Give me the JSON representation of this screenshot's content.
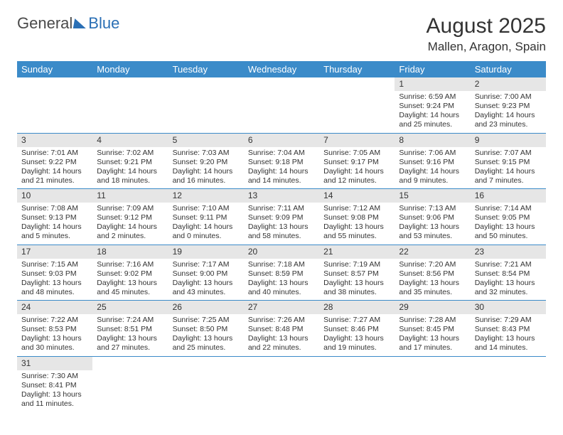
{
  "logo": {
    "text1": "General",
    "text2": "Blue"
  },
  "title": {
    "month": "August 2025",
    "location": "Mallen, Aragon, Spain"
  },
  "colors": {
    "header_bg": "#3b8bc9",
    "header_text": "#ffffff",
    "daynum_bg": "#e6e6e6",
    "border": "#3b8bc9",
    "logo_accent": "#2a6fb5"
  },
  "weekdays": [
    "Sunday",
    "Monday",
    "Tuesday",
    "Wednesday",
    "Thursday",
    "Friday",
    "Saturday"
  ],
  "weeks": [
    [
      null,
      null,
      null,
      null,
      null,
      {
        "n": "1",
        "sunrise": "Sunrise: 6:59 AM",
        "sunset": "Sunset: 9:24 PM",
        "daylight": "Daylight: 14 hours and 25 minutes."
      },
      {
        "n": "2",
        "sunrise": "Sunrise: 7:00 AM",
        "sunset": "Sunset: 9:23 PM",
        "daylight": "Daylight: 14 hours and 23 minutes."
      }
    ],
    [
      {
        "n": "3",
        "sunrise": "Sunrise: 7:01 AM",
        "sunset": "Sunset: 9:22 PM",
        "daylight": "Daylight: 14 hours and 21 minutes."
      },
      {
        "n": "4",
        "sunrise": "Sunrise: 7:02 AM",
        "sunset": "Sunset: 9:21 PM",
        "daylight": "Daylight: 14 hours and 18 minutes."
      },
      {
        "n": "5",
        "sunrise": "Sunrise: 7:03 AM",
        "sunset": "Sunset: 9:20 PM",
        "daylight": "Daylight: 14 hours and 16 minutes."
      },
      {
        "n": "6",
        "sunrise": "Sunrise: 7:04 AM",
        "sunset": "Sunset: 9:18 PM",
        "daylight": "Daylight: 14 hours and 14 minutes."
      },
      {
        "n": "7",
        "sunrise": "Sunrise: 7:05 AM",
        "sunset": "Sunset: 9:17 PM",
        "daylight": "Daylight: 14 hours and 12 minutes."
      },
      {
        "n": "8",
        "sunrise": "Sunrise: 7:06 AM",
        "sunset": "Sunset: 9:16 PM",
        "daylight": "Daylight: 14 hours and 9 minutes."
      },
      {
        "n": "9",
        "sunrise": "Sunrise: 7:07 AM",
        "sunset": "Sunset: 9:15 PM",
        "daylight": "Daylight: 14 hours and 7 minutes."
      }
    ],
    [
      {
        "n": "10",
        "sunrise": "Sunrise: 7:08 AM",
        "sunset": "Sunset: 9:13 PM",
        "daylight": "Daylight: 14 hours and 5 minutes."
      },
      {
        "n": "11",
        "sunrise": "Sunrise: 7:09 AM",
        "sunset": "Sunset: 9:12 PM",
        "daylight": "Daylight: 14 hours and 2 minutes."
      },
      {
        "n": "12",
        "sunrise": "Sunrise: 7:10 AM",
        "sunset": "Sunset: 9:11 PM",
        "daylight": "Daylight: 14 hours and 0 minutes."
      },
      {
        "n": "13",
        "sunrise": "Sunrise: 7:11 AM",
        "sunset": "Sunset: 9:09 PM",
        "daylight": "Daylight: 13 hours and 58 minutes."
      },
      {
        "n": "14",
        "sunrise": "Sunrise: 7:12 AM",
        "sunset": "Sunset: 9:08 PM",
        "daylight": "Daylight: 13 hours and 55 minutes."
      },
      {
        "n": "15",
        "sunrise": "Sunrise: 7:13 AM",
        "sunset": "Sunset: 9:06 PM",
        "daylight": "Daylight: 13 hours and 53 minutes."
      },
      {
        "n": "16",
        "sunrise": "Sunrise: 7:14 AM",
        "sunset": "Sunset: 9:05 PM",
        "daylight": "Daylight: 13 hours and 50 minutes."
      }
    ],
    [
      {
        "n": "17",
        "sunrise": "Sunrise: 7:15 AM",
        "sunset": "Sunset: 9:03 PM",
        "daylight": "Daylight: 13 hours and 48 minutes."
      },
      {
        "n": "18",
        "sunrise": "Sunrise: 7:16 AM",
        "sunset": "Sunset: 9:02 PM",
        "daylight": "Daylight: 13 hours and 45 minutes."
      },
      {
        "n": "19",
        "sunrise": "Sunrise: 7:17 AM",
        "sunset": "Sunset: 9:00 PM",
        "daylight": "Daylight: 13 hours and 43 minutes."
      },
      {
        "n": "20",
        "sunrise": "Sunrise: 7:18 AM",
        "sunset": "Sunset: 8:59 PM",
        "daylight": "Daylight: 13 hours and 40 minutes."
      },
      {
        "n": "21",
        "sunrise": "Sunrise: 7:19 AM",
        "sunset": "Sunset: 8:57 PM",
        "daylight": "Daylight: 13 hours and 38 minutes."
      },
      {
        "n": "22",
        "sunrise": "Sunrise: 7:20 AM",
        "sunset": "Sunset: 8:56 PM",
        "daylight": "Daylight: 13 hours and 35 minutes."
      },
      {
        "n": "23",
        "sunrise": "Sunrise: 7:21 AM",
        "sunset": "Sunset: 8:54 PM",
        "daylight": "Daylight: 13 hours and 32 minutes."
      }
    ],
    [
      {
        "n": "24",
        "sunrise": "Sunrise: 7:22 AM",
        "sunset": "Sunset: 8:53 PM",
        "daylight": "Daylight: 13 hours and 30 minutes."
      },
      {
        "n": "25",
        "sunrise": "Sunrise: 7:24 AM",
        "sunset": "Sunset: 8:51 PM",
        "daylight": "Daylight: 13 hours and 27 minutes."
      },
      {
        "n": "26",
        "sunrise": "Sunrise: 7:25 AM",
        "sunset": "Sunset: 8:50 PM",
        "daylight": "Daylight: 13 hours and 25 minutes."
      },
      {
        "n": "27",
        "sunrise": "Sunrise: 7:26 AM",
        "sunset": "Sunset: 8:48 PM",
        "daylight": "Daylight: 13 hours and 22 minutes."
      },
      {
        "n": "28",
        "sunrise": "Sunrise: 7:27 AM",
        "sunset": "Sunset: 8:46 PM",
        "daylight": "Daylight: 13 hours and 19 minutes."
      },
      {
        "n": "29",
        "sunrise": "Sunrise: 7:28 AM",
        "sunset": "Sunset: 8:45 PM",
        "daylight": "Daylight: 13 hours and 17 minutes."
      },
      {
        "n": "30",
        "sunrise": "Sunrise: 7:29 AM",
        "sunset": "Sunset: 8:43 PM",
        "daylight": "Daylight: 13 hours and 14 minutes."
      }
    ],
    [
      {
        "n": "31",
        "sunrise": "Sunrise: 7:30 AM",
        "sunset": "Sunset: 8:41 PM",
        "daylight": "Daylight: 13 hours and 11 minutes."
      },
      null,
      null,
      null,
      null,
      null,
      null
    ]
  ]
}
